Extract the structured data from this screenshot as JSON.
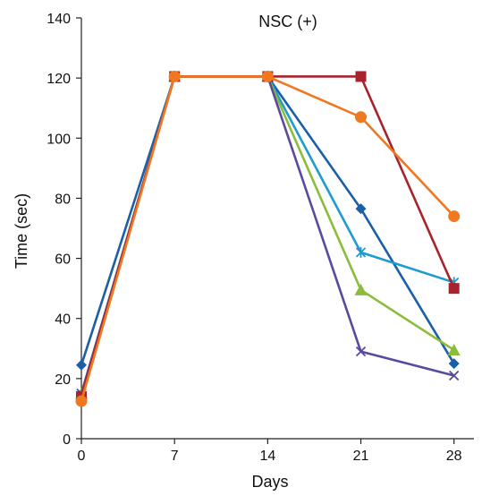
{
  "chart_data": {
    "type": "line",
    "title": "NSC (+)",
    "xlabel": "Days",
    "ylabel": "Time (sec)",
    "x": [
      0,
      7,
      14,
      21,
      28
    ],
    "x_ticks": [
      "0",
      "7",
      "14",
      "21",
      "28"
    ],
    "y_ticks": [
      "0",
      "20",
      "40",
      "60",
      "80",
      "100",
      "120",
      "140"
    ],
    "xlim": [
      0,
      29.5
    ],
    "ylim": [
      0,
      140
    ],
    "grid": false,
    "series": [
      {
        "color": "#1a5fa8",
        "marker": "diamond",
        "values": [
          24.5,
          120.5,
          120.5,
          76.5,
          25
        ]
      },
      {
        "color": "#1e9bd2",
        "marker": "star",
        "values": [
          15,
          120.5,
          120.5,
          62,
          52
        ]
      },
      {
        "color": "#8bbc3a",
        "marker": "triangle",
        "values": [
          15,
          120.5,
          120.5,
          49.5,
          29.5
        ]
      },
      {
        "color": "#5a4a9e",
        "marker": "x",
        "values": [
          15,
          120.5,
          120.5,
          29,
          21
        ]
      },
      {
        "color": "#a8232b",
        "marker": "square",
        "values": [
          14,
          120.5,
          120.5,
          120.5,
          50
        ]
      },
      {
        "color": "#f07820",
        "marker": "circle",
        "values": [
          12.5,
          120.5,
          120.5,
          107,
          74
        ]
      }
    ]
  }
}
